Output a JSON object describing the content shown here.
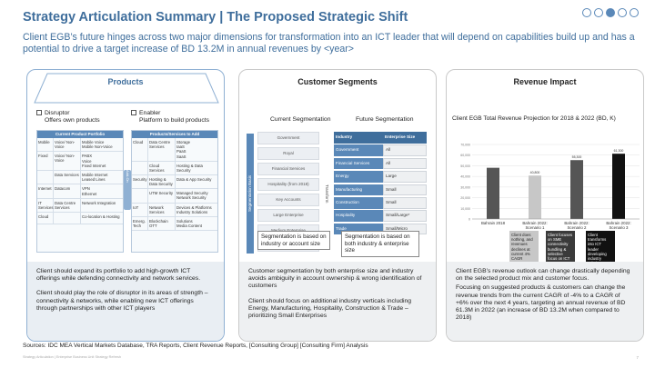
{
  "header": {
    "title": "Strategy Articulation Summary | The Proposed Strategic Shift",
    "subtitle": "Client EGB’s future hinges across two major dimensions for transformation into an ICT leader that will depend on capabilities build up and has a potential to drive a target increase of BD 13.2M in annual revenues by <year>",
    "page_dots": 5,
    "active_dot": 4
  },
  "products": {
    "title": "Products",
    "option_left": "Disruptor\nOffers own products",
    "option_right": "Enabler\nPlatform to build products",
    "left_table_header": "Current Product Portfolio",
    "right_table_header": "Products/Services to Add",
    "connector_label": "Add-On",
    "left_rows": [
      {
        "a": "Mobile",
        "b": "Voice/ Non-Voice",
        "c": "Mobile Voice\nMobile Non-Voice"
      },
      {
        "a": "Fixed",
        "b": "Voice/ Non-Voice",
        "c": "PABX\nVoice\nFixed Internet"
      },
      {
        "a": "",
        "b": "Data Services",
        "c": "Mobile Internet\nLeased Lines"
      },
      {
        "a": "Internet",
        "b": "Datacom",
        "c": "VPN\nEthernet"
      },
      {
        "a": "IT Services",
        "b": "Data Centre Services",
        "c": "Network Integration"
      },
      {
        "a": "Cloud",
        "b": "",
        "c": "Co-location & Hosting"
      }
    ],
    "right_rows": [
      {
        "a": "Cloud",
        "b": "Data Centre Services",
        "c": "Storage\nIaaS\nPaaS\nSaaS"
      },
      {
        "a": "",
        "b": "Cloud Services",
        "c": "Hosting & Data Security"
      },
      {
        "a": "Security",
        "b": "Hosting & Data Security",
        "c": "Data & App Security"
      },
      {
        "a": "",
        "b": "UTM Security",
        "c": "Managed Security\nNetwork Security"
      },
      {
        "a": "IoT",
        "b": "Network Services",
        "c": "Devices & Platforms\nIndustry Solutions"
      },
      {
        "a": "Emerg. Tech",
        "b": "Blockchain\nOTT",
        "c": "Solutions\nMedia Content"
      }
    ],
    "description": [
      "Client should expand its portfolio to add  high-growth ICT offerings while defending connectivity and network services.",
      "Client should play the role of disruptor in its areas of strength – connectivity & networks, while enabling new ICT offerings through partnerships with other ICT players"
    ]
  },
  "segments": {
    "title": "Customer Segments",
    "current_header": "Current\nSegmentation",
    "future_header": "Future\nSegmentation",
    "segmentation_basis_label": "Segmentation Basis",
    "industry_label": "Industry",
    "transform_label": "Transform",
    "current_list": [
      "Government",
      "Royal",
      "Financial Services",
      "Hospitality (from 2018)",
      "Key Accounts",
      "Large Enterprise",
      "Medium Enterprise",
      "Small Enterprise"
    ],
    "future_table_headers": [
      "Industry",
      "Enterprise Size"
    ],
    "future_rows": [
      [
        "Government",
        "All"
      ],
      [
        "Financial Services",
        "All"
      ],
      [
        "Energy",
        "Large"
      ],
      [
        "Manufacturing",
        "Small"
      ],
      [
        "Construction",
        "Small"
      ],
      [
        "Hospitality",
        "Small/Large*"
      ],
      [
        "Trade",
        "Small/Micro"
      ]
    ],
    "note_current": "Segmentation is based on industry or account size",
    "note_future": "Segmentation is based on both industry & enterprise size",
    "description": [
      "Customer segmentation by both enterprise size and industry avoids ambiguity in account ownership & wrong identification of customers",
      "Client should focus on additional industry verticals including Energy, Manufacturing, Hospitality, Construction & Trade – prioritizing Small Enterprises"
    ]
  },
  "revenue": {
    "title": "Revenue Impact",
    "chart_title": "Client EGB Total Revenue Projection for 2018 & 2022 (BD, K)",
    "scenario_notes": [
      "Client does nothing, and revenues declines at current 4% CAGR",
      "Client focuses on SME connectivity bundling & selective focus on ICT",
      "Client transforms into ICT leader developing industry solutions"
    ],
    "description": [
      "Client EGB’s revenue outlook can change drastically depending on the selected product mix and customer focus.",
      "Focusing on suggested products & customers can change the revenue trends from the current CAGR of -4% to a CAGR of +6% over the next 4 years, targeting an annual revenue of BD 61.3M in 2022 (an increase of BD 13.2M when compared to 2018)"
    ]
  },
  "chart_data": {
    "type": "bar",
    "title": "Client EGB Total Revenue Projection for 2018 & 2022 (BD, K)",
    "categories": [
      "Bahrain 2018",
      "Bahrain 2022: Scenario 1",
      "Bahrain 2022: Scenario 2",
      "Bahrain 2022: Scenario 3"
    ],
    "values": [
      48100,
      40800,
      55300,
      61300
    ],
    "labels": [
      "",
      "40,800",
      "55,300",
      "61,300"
    ],
    "colors": [
      "#555555",
      "#c7c7c7",
      "#555555",
      "#111111"
    ],
    "ylim": [
      0,
      70000
    ],
    "yticks": [
      "70,000",
      "60,000",
      "50,000",
      "40,000",
      "30,000",
      "20,000",
      "10,000",
      "0"
    ],
    "grid": true
  },
  "footer": {
    "sources": "Sources: IDC MEA Vertical Markets Database, TRA Reports, Client Revenue Reports, [Consulting Group] [Consulting Firm] Analysis",
    "confidential": "Strategy Articulation | Enterprise Business Unit Strategy Refresh",
    "page": "7"
  }
}
